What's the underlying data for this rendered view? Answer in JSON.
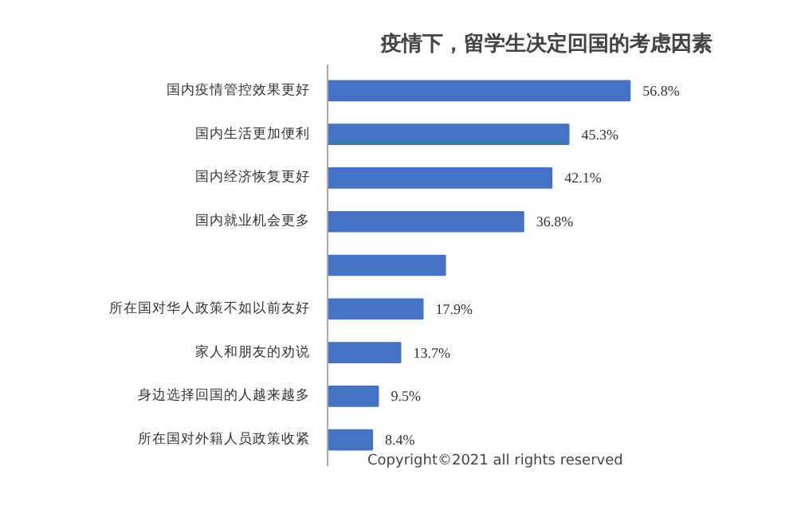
{
  "chart_data": {
    "type": "bar",
    "orientation": "horizontal",
    "title": "疫情下，留学生决定回国的考虑因素",
    "categories": [
      "国内疫情管控效果更好",
      "国内生活更加便利",
      "国内经济恢复更好",
      "国内就业机会更多",
      null,
      "所在国对华人政策不如以前友好",
      "家人和朋友的劝说",
      "身边选择回国的人越来越多",
      "所在国对外籍人员政策收紧"
    ],
    "values": [
      56.8,
      45.3,
      42.1,
      36.8,
      22.1,
      17.9,
      13.7,
      9.5,
      8.4
    ],
    "value_labels": [
      "56.8%",
      "45.3%",
      "42.1%",
      "36.8%",
      null,
      "17.9%",
      "13.7%",
      "9.5%",
      "8.4%"
    ],
    "color": "#4472c4",
    "annotations": [
      "Copyright©2021 all rights reserved"
    ],
    "grid": false
  }
}
